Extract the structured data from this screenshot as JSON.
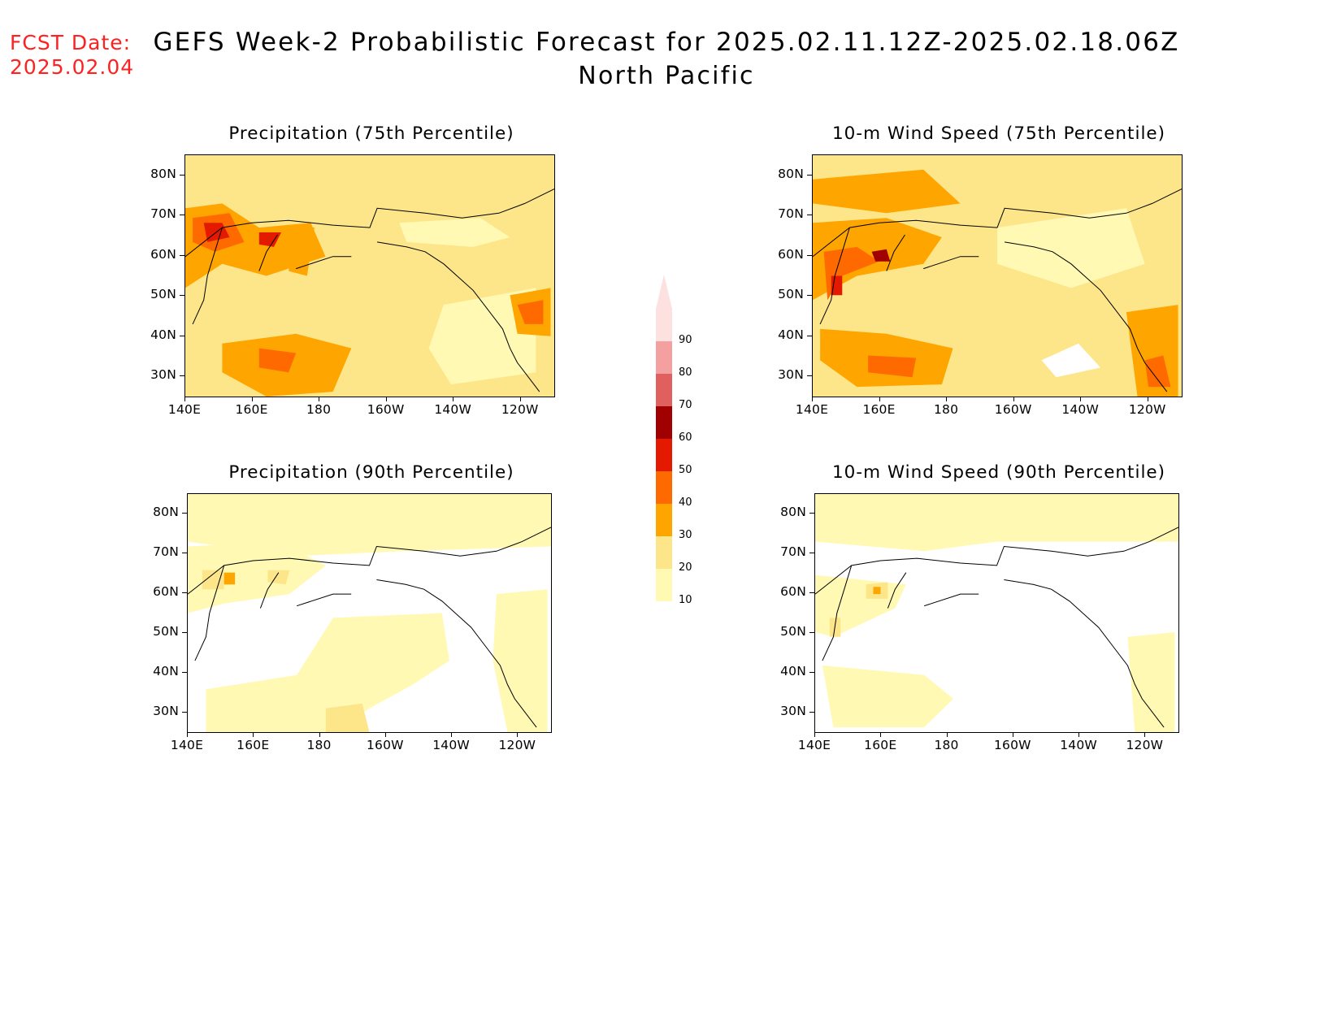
{
  "header": {
    "fcst_label": "FCST Date:",
    "fcst_date": "2025.02.04",
    "title_line1": "GEFS Week-2 Probabilistic Forecast for 2025.02.11.12Z-2025.02.18.06Z",
    "title_line2": "North Pacific"
  },
  "axes": {
    "lat_labels": [
      "80N",
      "70N",
      "60N",
      "50N",
      "40N",
      "30N"
    ],
    "lon_labels": [
      "140E",
      "160E",
      "180",
      "160W",
      "140W",
      "120W"
    ],
    "lat_range": [
      25,
      85
    ],
    "lon_range_east": [
      140,
      250
    ]
  },
  "panels": [
    {
      "id": "precip-75",
      "title": "Precipitation (75th Percentile)"
    },
    {
      "id": "wind-75",
      "title": "10-m Wind Speed (75th Percentile)"
    },
    {
      "id": "precip-90",
      "title": "Precipitation (90th Percentile)"
    },
    {
      "id": "wind-90",
      "title": "10-m Wind Speed (90th Percentile)"
    }
  ],
  "colorbar": {
    "levels": [
      "10",
      "20",
      "30",
      "40",
      "50",
      "60",
      "70",
      "80",
      "90"
    ],
    "colors": [
      "#fff9b3",
      "#fde68a",
      "#ffa500",
      "#ff6a00",
      "#e31a00",
      "#a00000",
      "#e06060",
      "#f4a0a0",
      "#fde0e0"
    ]
  }
}
